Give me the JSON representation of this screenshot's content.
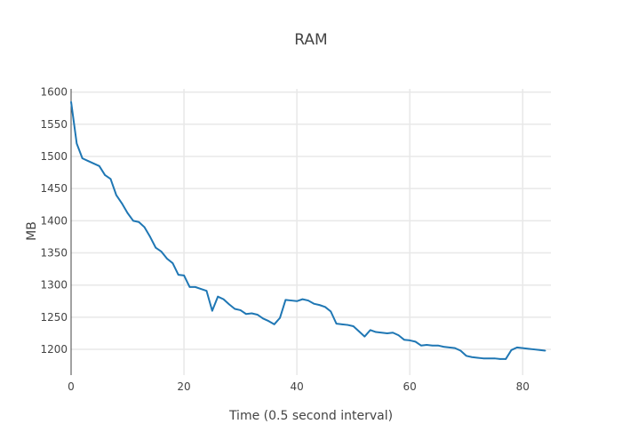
{
  "chart_data": {
    "type": "line",
    "title": "RAM",
    "xlabel": "Time (0.5 second interval)",
    "ylabel": "MB",
    "xlim": [
      0,
      85
    ],
    "ylim": [
      1160,
      1605
    ],
    "x_ticks": [
      0,
      20,
      40,
      60,
      80
    ],
    "y_ticks": [
      1200,
      1250,
      1300,
      1350,
      1400,
      1450,
      1500,
      1550,
      1600
    ],
    "grid": true,
    "legend": "none",
    "series": [
      {
        "color": "#1f77b4",
        "x": [
          0,
          1,
          2,
          3,
          4,
          5,
          6,
          7,
          8,
          9,
          10,
          11,
          12,
          13,
          14,
          15,
          16,
          17,
          18,
          19,
          20,
          21,
          22,
          23,
          24,
          25,
          26,
          27,
          28,
          29,
          30,
          31,
          32,
          33,
          34,
          35,
          36,
          37,
          38,
          39,
          40,
          41,
          42,
          43,
          44,
          45,
          46,
          47,
          48,
          49,
          50,
          51,
          52,
          53,
          54,
          55,
          56,
          57,
          58,
          59,
          60,
          61,
          62,
          63,
          64,
          65,
          66,
          67,
          68,
          69,
          70,
          71,
          72,
          73,
          74,
          75,
          76,
          77,
          78,
          79,
          80,
          81,
          82,
          83,
          84
        ],
        "y": [
          1585,
          1520,
          1497,
          1493,
          1489,
          1485,
          1471,
          1465,
          1440,
          1427,
          1412,
          1400,
          1398,
          1390,
          1375,
          1358,
          1352,
          1341,
          1334,
          1316,
          1315,
          1297,
          1297,
          1294,
          1291,
          1260,
          1282,
          1278,
          1270,
          1263,
          1261,
          1255,
          1256,
          1254,
          1248,
          1244,
          1239,
          1249,
          1277,
          1276,
          1275,
          1278,
          1276,
          1271,
          1269,
          1266,
          1259,
          1240,
          1239,
          1238,
          1236,
          1228,
          1220,
          1230,
          1227,
          1226,
          1225,
          1226,
          1222,
          1215,
          1214,
          1212,
          1206,
          1207,
          1206,
          1206,
          1204,
          1203,
          1202,
          1198,
          1190,
          1188,
          1187,
          1186,
          1186,
          1186,
          1185,
          1185,
          1199,
          1203,
          1202,
          1201,
          1200,
          1199,
          1198
        ]
      }
    ]
  }
}
